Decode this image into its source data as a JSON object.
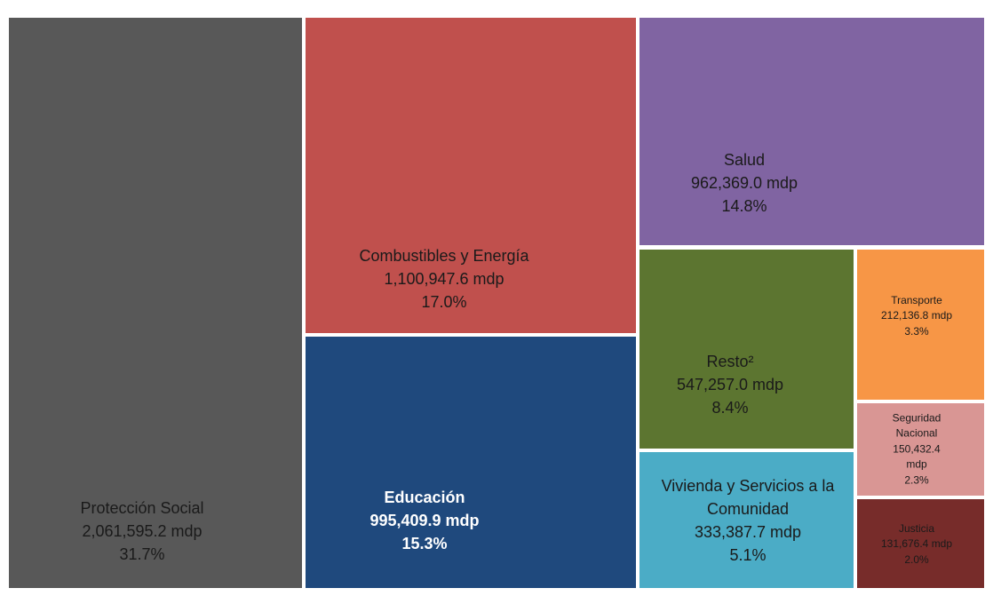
{
  "chart_data": {
    "type": "treemap",
    "categories": [
      "Protección Social",
      "Combustibles y Energía",
      "Educación",
      "Salud",
      "Resto²",
      "Vivienda y Servicios a la Comunidad",
      "Transporte",
      "Seguridad Nacional",
      "Justicia"
    ],
    "values": [
      2061595.2,
      1100947.6,
      995409.9,
      962369.0,
      547257.0,
      333387.7,
      212136.8,
      150432.4,
      131676.4
    ],
    "value_labels": [
      "2,061,595.2 mdp",
      "1,100,947.6 mdp",
      "995,409.9 mdp",
      "962,369.0 mdp",
      "547,257.0 mdp",
      "333,387.7 mdp",
      "212,136.8 mdp",
      "150,432.4 mdp",
      "131,676.4 mdp"
    ],
    "percents": [
      31.7,
      17.0,
      15.3,
      14.8,
      8.4,
      5.1,
      3.3,
      2.3,
      2.0
    ],
    "percent_labels": [
      "31.7%",
      "17.0%",
      "15.3%",
      "14.8%",
      "8.4%",
      "5.1%",
      "3.3%",
      "2.3%",
      "2.0%"
    ],
    "colors": [
      "#585858",
      "#c0504d",
      "#1f497d",
      "#8064a2",
      "#5c7530",
      "#4bacc6",
      "#f79646",
      "#d99694",
      "#772c2a"
    ]
  }
}
